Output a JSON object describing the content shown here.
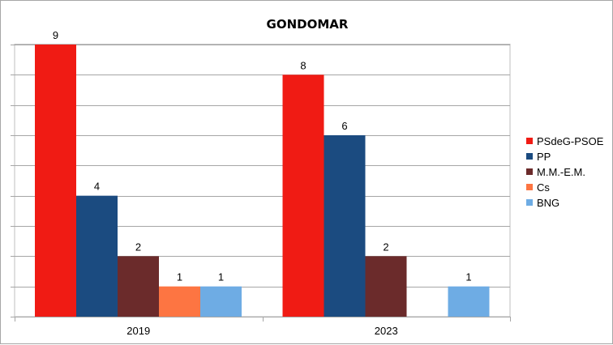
{
  "chart_data": {
    "type": "bar",
    "title": "GONDOMAR",
    "xlabel": "",
    "ylabel": "",
    "ylim": [
      0,
      9
    ],
    "grid": true,
    "legend": "right",
    "categories": [
      "2019",
      "2023"
    ],
    "series": [
      {
        "name": "PSdeG-PSOE",
        "color": "#f01b14",
        "values": [
          9,
          8
        ]
      },
      {
        "name": "PP",
        "color": "#1b4b80",
        "values": [
          4,
          6
        ]
      },
      {
        "name": "M.M.-E.M.",
        "color": "#6b2b2b",
        "values": [
          2,
          2
        ]
      },
      {
        "name": "Cs",
        "color": "#fd7542",
        "values": [
          1,
          null
        ]
      },
      {
        "name": "BNG",
        "color": "#6eace4",
        "values": [
          1,
          1
        ]
      }
    ]
  }
}
